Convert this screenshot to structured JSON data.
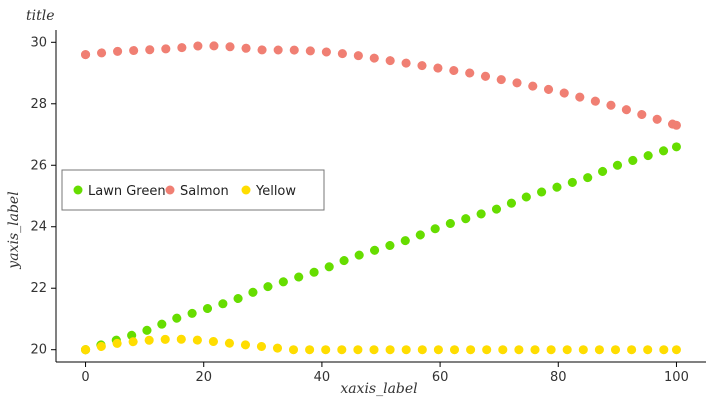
{
  "chart_data": {
    "type": "line",
    "title": "title",
    "xlabel": "xaxis_label",
    "ylabel": "yaxis_label",
    "xlim": [
      -5,
      105
    ],
    "ylim": [
      19.6,
      30.4
    ],
    "x_ticks": [
      0,
      20,
      40,
      60,
      80,
      100
    ],
    "y_ticks": [
      20,
      22,
      24,
      26,
      28,
      30
    ],
    "grid": false,
    "legend_position": "left",
    "series": [
      {
        "name": "Lawn Green",
        "color": "#66dd00",
        "x": [
          0,
          5,
          10,
          15,
          20,
          25,
          30,
          35,
          40,
          45,
          50,
          55,
          60,
          65,
          70,
          75,
          80,
          85,
          90,
          95,
          100
        ],
        "y": [
          20.0,
          20.3,
          20.6,
          21.0,
          21.3,
          21.6,
          22.0,
          22.3,
          22.6,
          23.0,
          23.3,
          23.6,
          24.0,
          24.3,
          24.6,
          25.0,
          25.3,
          25.6,
          26.0,
          26.3,
          26.6
        ]
      },
      {
        "name": "Salmon",
        "color": "#f07f73",
        "x": [
          0,
          5,
          10,
          15,
          20,
          25,
          30,
          35,
          40,
          45,
          50,
          55,
          60,
          65,
          70,
          75,
          80,
          85,
          90,
          95,
          100
        ],
        "y": [
          29.6,
          29.7,
          29.75,
          29.8,
          29.9,
          29.85,
          29.75,
          29.75,
          29.7,
          29.6,
          29.45,
          29.3,
          29.15,
          29.0,
          28.8,
          28.6,
          28.4,
          28.15,
          27.9,
          27.6,
          27.3
        ]
      },
      {
        "name": "Yellow",
        "color": "#ffdd00",
        "x": [
          0,
          5,
          10,
          15,
          20,
          25,
          30,
          35,
          40,
          45,
          50,
          55,
          60,
          65,
          70,
          75,
          80,
          85,
          90,
          95,
          100
        ],
        "y": [
          20.0,
          20.2,
          20.3,
          20.35,
          20.3,
          20.2,
          20.1,
          20.0,
          20.0,
          20.0,
          20.0,
          20.0,
          20.0,
          20.0,
          20.0,
          20.0,
          20.0,
          20.0,
          20.0,
          20.0,
          20.0
        ]
      }
    ]
  }
}
